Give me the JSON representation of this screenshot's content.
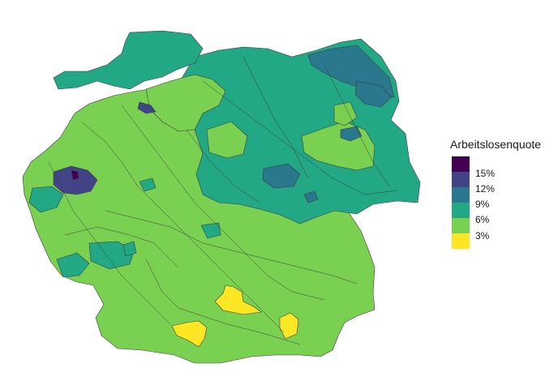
{
  "legend": {
    "title": "Arbeitslosenquote",
    "ticks": [
      "15%",
      "12%",
      "9%",
      "6%",
      "3%"
    ]
  },
  "colors": {
    "level_17": "#440154",
    "level_13": "#414487",
    "level_10": "#2a788e",
    "level_8": "#22a884",
    "level_5": "#7ad151",
    "level_2": "#fde725"
  }
}
